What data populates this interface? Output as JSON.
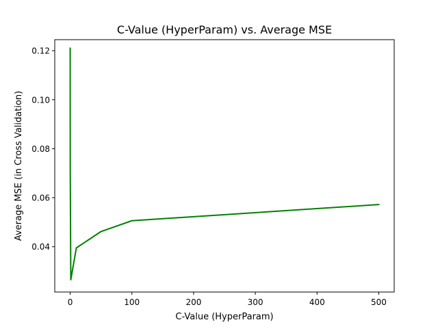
{
  "chart_data": {
    "type": "line",
    "title": "C-Value (HyperParam) vs. Average MSE",
    "xlabel": "C-Value (HyperParam)",
    "ylabel": "Average MSE (in Cross Validation)",
    "xlim": [
      -25,
      525
    ],
    "ylim": [
      0.0215,
      0.1245
    ],
    "xticks": [
      0,
      100,
      200,
      300,
      400,
      500
    ],
    "yticks": [
      0.04,
      0.06,
      0.08,
      0.1,
      0.12
    ],
    "ytick_labels": [
      "0.04",
      "0.06",
      "0.08",
      "0.10",
      "0.12"
    ],
    "grid": false,
    "legend": "none",
    "series": [
      {
        "color": "#008000",
        "x": [
          0.01,
          0.1,
          1,
          10,
          50,
          100,
          500
        ],
        "y": [
          0.121,
          0.0715,
          0.0265,
          0.0395,
          0.0462,
          0.0506,
          0.0572
        ]
      }
    ]
  }
}
